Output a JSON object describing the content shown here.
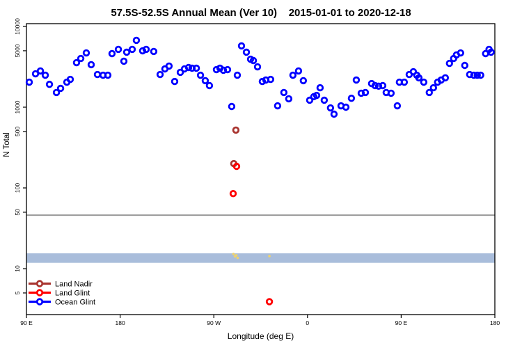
{
  "title": "57.5S-52.5S Annual Mean (Ver 10)    2015-01-01 to 2020-12-18",
  "chart_data": {
    "type": "scatter",
    "title": "57.5S-52.5S Annual Mean (Ver 10)    2015-01-01 to 2020-12-18",
    "xlabel": "Longitude (deg E)",
    "ylabel": "N Total",
    "x_axis": {
      "note": "longitude axis starts at 90E and wraps eastward: 90E,180,90W,0,90E,180; deg value = degrees along axis + 90",
      "range_deg": [
        90,
        540
      ],
      "ticks": [
        {
          "deg": 90,
          "label": "90 E"
        },
        {
          "deg": 180,
          "label": "180"
        },
        {
          "deg": 270,
          "label": "90 W"
        },
        {
          "deg": 360,
          "label": "0"
        },
        {
          "deg": 450,
          "label": "90 E"
        },
        {
          "deg": 540,
          "label": "180"
        }
      ]
    },
    "y_axis": {
      "scale": "log10",
      "ticks": [
        10000,
        5000,
        1000,
        500,
        100,
        50,
        10,
        5
      ],
      "ylim": [
        2.7,
        10800
      ]
    },
    "grid": "off",
    "reference_line": {
      "value": 46,
      "color": "#999999"
    },
    "band": {
      "from": 11.8,
      "to": 15.5,
      "color": "#A9BDDB"
    },
    "legend": {
      "position": "bottom-left",
      "entries": [
        {
          "label": "Land Nadir",
          "color": "#A93530"
        },
        {
          "label": "Land Glint",
          "color": "#FF0000"
        },
        {
          "label": "Ocean Glint",
          "color": "#0000FF"
        }
      ]
    },
    "series": [
      {
        "name": "Land Nadir",
        "color": "#A93530",
        "marker": "open-circle",
        "points": [
          [
            291.2,
            520
          ],
          [
            289.2,
            200
          ]
        ]
      },
      {
        "name": "Land Glint",
        "color": "#FF0000",
        "marker": "open-circle",
        "points": [
          [
            291.9,
            185
          ],
          [
            288.6,
            85
          ],
          [
            323.4,
            3.9
          ]
        ]
      },
      {
        "name": "unlabeled yellow",
        "color": "#EFD36D",
        "marker": "dot",
        "points": [
          [
            288.9,
            15.2
          ],
          [
            290.3,
            14.2
          ],
          [
            291.6,
            14.6
          ],
          [
            292.9,
            13.6
          ],
          [
            323.4,
            14.3
          ]
        ]
      },
      {
        "name": "Ocean Glint",
        "color": "#0000FF",
        "marker": "open-circle",
        "points": [
          [
            92.7,
            2040
          ],
          [
            98.7,
            2590
          ],
          [
            103.4,
            2810
          ],
          [
            108.1,
            2490
          ],
          [
            112.1,
            1920
          ],
          [
            118.8,
            1520
          ],
          [
            122.8,
            1710
          ],
          [
            128.8,
            2040
          ],
          [
            132.1,
            2210
          ],
          [
            138.1,
            3560
          ],
          [
            142.2,
            4010
          ],
          [
            147.5,
            4700
          ],
          [
            152.2,
            3360
          ],
          [
            158.2,
            2540
          ],
          [
            163.6,
            2490
          ],
          [
            168.2,
            2490
          ],
          [
            172.2,
            4610
          ],
          [
            178.3,
            5200
          ],
          [
            183.6,
            3710
          ],
          [
            186.3,
            4800
          ],
          [
            191.6,
            5200
          ],
          [
            195.6,
            6730
          ],
          [
            201.6,
            4990
          ],
          [
            205.0,
            5200
          ],
          [
            212.3,
            4900
          ],
          [
            218.4,
            2540
          ],
          [
            223.0,
            2980
          ],
          [
            227.0,
            3230
          ],
          [
            232.4,
            2080
          ],
          [
            237.8,
            2700
          ],
          [
            241.8,
            2980
          ],
          [
            245.8,
            3100
          ],
          [
            249.1,
            3040
          ],
          [
            253.2,
            3040
          ],
          [
            257.2,
            2490
          ],
          [
            261.8,
            2130
          ],
          [
            265.8,
            1850
          ],
          [
            272.5,
            2920
          ],
          [
            275.9,
            3040
          ],
          [
            279.2,
            2870
          ],
          [
            283.2,
            2920
          ],
          [
            287.2,
            1020
          ],
          [
            292.6,
            2490
          ],
          [
            296.6,
            5740
          ],
          [
            301.3,
            4800
          ],
          [
            305.3,
            3930
          ],
          [
            308.0,
            3780
          ],
          [
            312.0,
            3160
          ],
          [
            316.6,
            2080
          ],
          [
            320.0,
            2170
          ],
          [
            324.6,
            2210
          ],
          [
            331.3,
            1040
          ],
          [
            337.3,
            1520
          ],
          [
            342.0,
            1270
          ],
          [
            346.0,
            2490
          ],
          [
            351.4,
            2810
          ],
          [
            356.0,
            2130
          ],
          [
            362.1,
            1220
          ],
          [
            366.1,
            1350
          ],
          [
            368.8,
            1400
          ],
          [
            372.1,
            1740
          ],
          [
            376.1,
            1220
          ],
          [
            382.1,
            980
          ],
          [
            385.5,
            820
          ],
          [
            392.2,
            1040
          ],
          [
            396.9,
            1000
          ],
          [
            402.2,
            1290
          ],
          [
            406.9,
            2170
          ],
          [
            411.6,
            1490
          ],
          [
            415.6,
            1520
          ],
          [
            421.6,
            1960
          ],
          [
            424.9,
            1850
          ],
          [
            428.3,
            1820
          ],
          [
            432.3,
            1850
          ],
          [
            435.6,
            1520
          ],
          [
            440.3,
            1490
          ],
          [
            446.3,
            1040
          ],
          [
            448.3,
            2040
          ],
          [
            453.0,
            2040
          ],
          [
            457.7,
            2540
          ],
          [
            461.7,
            2750
          ],
          [
            465.0,
            2490
          ],
          [
            467.0,
            2310
          ],
          [
            471.7,
            2040
          ],
          [
            477.0,
            1520
          ],
          [
            481.0,
            1740
          ],
          [
            485.0,
            2040
          ],
          [
            488.4,
            2170
          ],
          [
            492.4,
            2310
          ],
          [
            496.4,
            3490
          ],
          [
            500.4,
            4010
          ],
          [
            503.1,
            4440
          ],
          [
            507.1,
            4700
          ],
          [
            511.1,
            3290
          ],
          [
            515.8,
            2540
          ],
          [
            519.8,
            2490
          ],
          [
            523.1,
            2490
          ],
          [
            526.4,
            2490
          ],
          [
            531.1,
            4610
          ],
          [
            534.4,
            5200
          ],
          [
            536.4,
            4800
          ]
        ]
      }
    ]
  }
}
